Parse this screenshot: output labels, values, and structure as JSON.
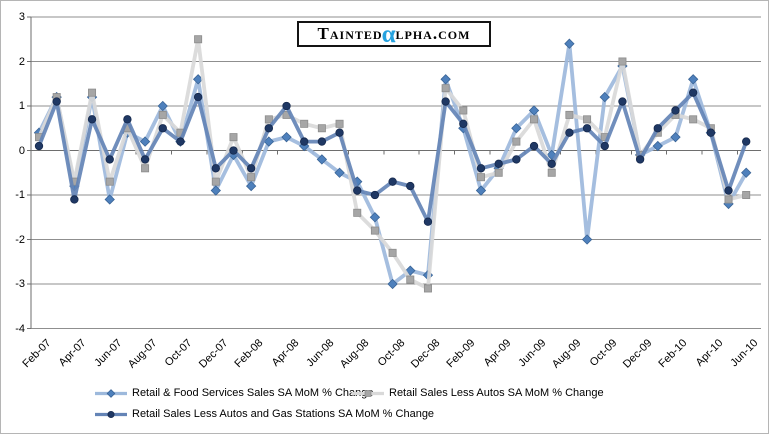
{
  "logo": {
    "prefix": "Tainted",
    "alpha": "α",
    "suffix": "lpha.com",
    "alpha_color": "#25A2DF"
  },
  "chart_data": {
    "type": "line",
    "title": "",
    "xlabel": "",
    "ylabel": "",
    "ylim": [
      -4,
      3
    ],
    "grid": true,
    "legend_position": "bottom-left",
    "y_ticks": [
      3,
      2,
      1,
      0,
      -1,
      -2,
      -3,
      -4
    ],
    "categories": [
      "Feb-07",
      "Mar-07",
      "Apr-07",
      "May-07",
      "Jun-07",
      "Jul-07",
      "Aug-07",
      "Sep-07",
      "Oct-07",
      "Nov-07",
      "Dec-07",
      "Jan-08",
      "Feb-08",
      "Mar-08",
      "Apr-08",
      "May-08",
      "Jun-08",
      "Jul-08",
      "Aug-08",
      "Sep-08",
      "Oct-08",
      "Nov-08",
      "Dec-08",
      "Jan-09",
      "Feb-09",
      "Mar-09",
      "Apr-09",
      "May-09",
      "Jun-09",
      "Jul-09",
      "Aug-09",
      "Sep-09",
      "Oct-09",
      "Nov-09",
      "Dec-09",
      "Jan-10",
      "Feb-10",
      "Mar-10",
      "Apr-10",
      "May-10",
      "Jun-10"
    ],
    "x_axis_labels": [
      "Feb-07",
      "Apr-07",
      "Jun-07",
      "Aug-07",
      "Oct-07",
      "Dec-07",
      "Feb-08",
      "Apr-08",
      "Jun-08",
      "Aug-08",
      "Oct-08",
      "Dec-08",
      "Feb-09",
      "Apr-09",
      "Jun-09",
      "Aug-09",
      "Oct-09",
      "Dec-09",
      "Feb-10",
      "Apr-10",
      "Jun-10"
    ],
    "series": [
      {
        "name": "Retail & Food Services Sales SA MoM % Change",
        "marker": "diamond",
        "line_color": "#9DB9DC",
        "marker_color": "#4E80BC",
        "marker_edge": "#3A6496",
        "values": [
          0.4,
          1.2,
          -0.8,
          1.2,
          -1.1,
          0.4,
          0.2,
          1.0,
          0.2,
          1.6,
          -0.9,
          -0.1,
          -0.8,
          0.2,
          0.3,
          0.1,
          -0.2,
          -0.5,
          -0.7,
          -1.5,
          -3.0,
          -2.7,
          -2.8,
          1.6,
          0.5,
          -0.9,
          -0.4,
          0.5,
          0.9,
          -0.1,
          2.4,
          -2.0,
          1.2,
          1.9,
          -0.1,
          0.1,
          0.3,
          1.6,
          0.4,
          -1.2,
          -0.5
        ]
      },
      {
        "name": "Retail Sales Less Autos SA MoM % Change",
        "marker": "square",
        "line_color": "#D9D9D9",
        "marker_color": "#A6A6A6",
        "marker_edge": "#8C8C8C",
        "values": [
          0.3,
          1.2,
          -0.7,
          1.3,
          -0.7,
          0.5,
          -0.4,
          0.8,
          0.4,
          2.5,
          -0.7,
          0.3,
          -0.6,
          0.7,
          0.8,
          0.6,
          0.5,
          0.6,
          -1.4,
          -1.8,
          -2.3,
          -2.9,
          -3.1,
          1.4,
          0.9,
          -0.6,
          -0.5,
          0.2,
          0.7,
          -0.5,
          0.8,
          0.7,
          0.3,
          2.0,
          -0.1,
          0.4,
          0.8,
          0.7,
          0.5,
          -1.1,
          -1.0
        ]
      },
      {
        "name": "Retail Sales Less Autos and Gas Stations SA MoM % Change",
        "marker": "circle",
        "line_color": "#6484B6",
        "marker_color": "#1F3864",
        "marker_edge": "#16294D",
        "values": [
          0.1,
          1.1,
          -1.1,
          0.7,
          -0.2,
          0.7,
          -0.2,
          0.5,
          0.2,
          1.2,
          -0.4,
          0.0,
          -0.4,
          0.5,
          1.0,
          0.2,
          0.2,
          0.4,
          -0.9,
          -1.0,
          -0.7,
          -0.8,
          -1.6,
          1.1,
          0.6,
          -0.4,
          -0.3,
          -0.2,
          0.1,
          -0.3,
          0.4,
          0.5,
          0.1,
          1.1,
          -0.2,
          0.5,
          0.9,
          1.3,
          0.4,
          -0.9,
          0.2
        ]
      }
    ]
  }
}
